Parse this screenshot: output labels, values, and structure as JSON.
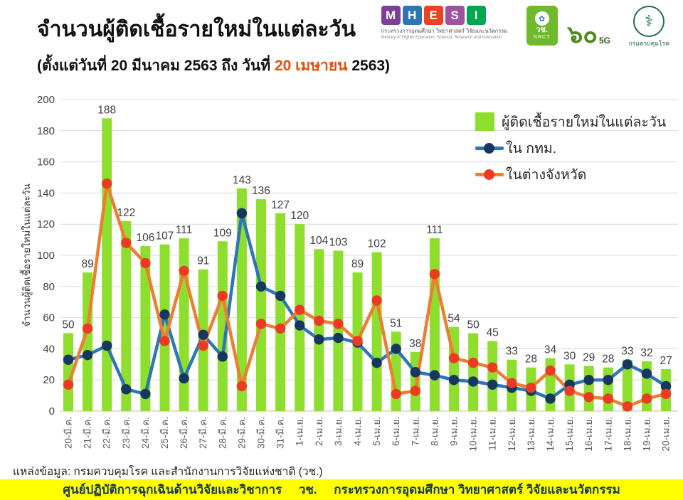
{
  "header": {
    "title": "จำนวนผู้ติดเชื้อรายใหม่ในแต่ละวัน",
    "subtitle_prefix": "(ตั้งแต่วันที่ 20 มีนาคม 2563 ถึง วันที่ ",
    "subtitle_highlight": "20 เมษายน",
    "subtitle_suffix": " 2563)"
  },
  "logos": {
    "mhesi": {
      "letters": [
        "M",
        "H",
        "E",
        "S",
        "I"
      ],
      "colors": [
        "#7d3f98",
        "#2e75b6",
        "#ee4023",
        "#a0519f",
        "#00a651"
      ],
      "line1": "กระทรวงการอุดมศึกษา วิทยาศาสตร์ วิจัยและนวัตกรรม",
      "line2": "Ministry of Higher Education, Science, Research and Innovation"
    },
    "nrct": {
      "symbol": "✿",
      "label1": "วช.",
      "label2": "NRCT"
    },
    "sixty": {
      "number": "๖๐",
      "sub": "5G"
    },
    "ddc": {
      "symbol": "⚕",
      "caption": "กรมควบคุมโรค"
    }
  },
  "chart_data": {
    "type": "bar",
    "title": "",
    "xlabel": "",
    "ylabel": "จำนวนผู้ติดเชื้อรายใหม่ในแต่ละวัน",
    "ylim": [
      0,
      200
    ],
    "ytick_step": 20,
    "grid": "horizontal",
    "legend_position": "top-right",
    "categories": [
      "20-มี.ค.",
      "21-มี.ค.",
      "22-มี.ค.",
      "23-มี.ค.",
      "24-มี.ค.",
      "25-มี.ค.",
      "26-มี.ค.",
      "27-มี.ค.",
      "28-มี.ค.",
      "29-มี.ค.",
      "30-มี.ค.",
      "31-มี.ค.",
      "1-เม.ย.",
      "2-เม.ย.",
      "3-เม.ย.",
      "4-เม.ย.",
      "5-เม.ย.",
      "6-เม.ย.",
      "7-เม.ย.",
      "8-เม.ย.",
      "9-เม.ย.",
      "10-เม.ย.",
      "11-เม.ย.",
      "12-เม.ย.",
      "13-เม.ย.",
      "14-เม.ย.",
      "15-เม.ย.",
      "16-เม.ย.",
      "17-เม.ย.",
      "18-เม.ย.",
      "19-เม.ย.",
      "20-เม.ย."
    ],
    "series": [
      {
        "name": "ผู้ติดเชื้อรายใหม่ในแต่ละวัน",
        "type": "bar",
        "color": "#8ede2e",
        "values": [
          50,
          89,
          188,
          122,
          106,
          107,
          111,
          91,
          109,
          143,
          136,
          127,
          120,
          104,
          103,
          89,
          102,
          51,
          38,
          111,
          54,
          50,
          45,
          33,
          28,
          34,
          30,
          29,
          28,
          33,
          32,
          27
        ],
        "labels_shown": true
      },
      {
        "name": "ใน กทม.",
        "type": "line",
        "color": "#2e75b6",
        "marker_color": "#17375e",
        "values": [
          33,
          36,
          42,
          14,
          11,
          62,
          21,
          49,
          35,
          127,
          80,
          74,
          55,
          46,
          47,
          44,
          31,
          40,
          25,
          23,
          20,
          19,
          17,
          15,
          13,
          8,
          17,
          20,
          20,
          30,
          24,
          16
        ],
        "labels_shown": false
      },
      {
        "name": "ในต่างจังหวัด",
        "type": "line",
        "color": "#ed7d31",
        "marker_color": "#ee3a23",
        "values": [
          17,
          53,
          146,
          108,
          95,
          45,
          90,
          42,
          74,
          16,
          56,
          53,
          65,
          58,
          56,
          45,
          71,
          11,
          13,
          88,
          34,
          31,
          28,
          18,
          15,
          26,
          13,
          9,
          8,
          3,
          8,
          11
        ],
        "labels_shown": false
      }
    ]
  },
  "footer": {
    "source": "แหล่งข้อมูล: กรมควบคุมโรค และสำนักงานการวิจัยแห่งชาติ (วช.)",
    "banner": "ศูนย์ปฏิบัติการฉุกเฉินด้านวิจัยและวิชาการ     วช.     กระทรวงการอุดมศึกษา วิทยาศาสตร์ วิจัยและนวัตกรรม"
  }
}
